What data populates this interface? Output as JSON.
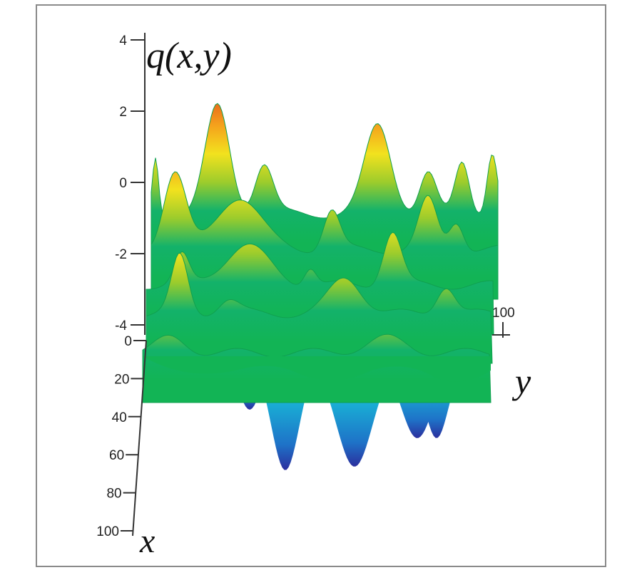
{
  "chart_data": {
    "type": "surface",
    "zlabel": "q(x,y)",
    "xlabel": "x",
    "ylabel": "y",
    "z_ticks": [
      "4",
      "2",
      "0",
      "-2",
      "-4"
    ],
    "z_values": [
      4,
      2,
      0,
      -2,
      -4
    ],
    "zlim": [
      -4,
      4
    ],
    "x_ticks": [
      "0",
      "20",
      "40",
      "60",
      "80",
      "100"
    ],
    "x_values": [
      0,
      20,
      40,
      60,
      80,
      100
    ],
    "xlim": [
      0,
      100
    ],
    "y_ticks": [
      "100"
    ],
    "y_values": [
      100
    ],
    "ylim": [
      0,
      100
    ],
    "surface_features": {
      "peaks": [
        {
          "label": "peak",
          "z": 2.0
        },
        {
          "label": "peak",
          "z": 1.6
        },
        {
          "label": "peak",
          "z": 0.3
        },
        {
          "label": "peak",
          "z": 0.5
        },
        {
          "label": "peak",
          "z": -0.2
        },
        {
          "label": "peak",
          "z": -0.3
        },
        {
          "label": "peak",
          "z": -1.4
        },
        {
          "label": "peak",
          "z": -2.6
        },
        {
          "label": "peak",
          "z": -3.2
        }
      ],
      "troughs": [
        {
          "label": "trough",
          "z": -4.0
        },
        {
          "label": "trough",
          "z": -3.8
        },
        {
          "label": "trough",
          "z": -3.6
        },
        {
          "label": "trough",
          "z": -3.5
        }
      ]
    },
    "colormap": [
      "#2b2f9e",
      "#1e73c8",
      "#19b3d6",
      "#13b26a",
      "#12b455",
      "#9ccc2c",
      "#f2e21e",
      "#f5a21c",
      "#e8641c"
    ],
    "grid": false,
    "legend": "none"
  }
}
